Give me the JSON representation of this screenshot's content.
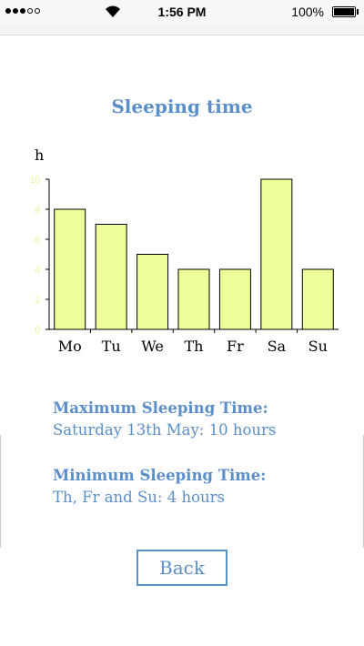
{
  "status_bar": {
    "time": "1:56 PM",
    "battery": "100%",
    "signal_bars_filled": 3,
    "signal_bars_total": 5
  },
  "page": {
    "title": "Sleeping time"
  },
  "chart_data": {
    "type": "bar",
    "ylabel": "h",
    "categories": [
      "Mo",
      "Tu",
      "We",
      "Th",
      "Fr",
      "Sa",
      "Su"
    ],
    "values": [
      8,
      7,
      5,
      4,
      4,
      10,
      4
    ],
    "yticks": [
      "0",
      "2",
      "4",
      "6",
      "8",
      "10"
    ],
    "ylim": [
      0,
      10
    ],
    "bar_color": "#eeff99",
    "grid": false
  },
  "info": {
    "max_heading": "Maximum Sleeping Time:",
    "max_value": "Saturday 13th May: 10 hours",
    "min_heading": "Minimum Sleeping Time:",
    "min_value": "Th, Fr and Su: 4 hours"
  },
  "actions": {
    "back_label": "Back"
  },
  "colors": {
    "accent": "#5b8fc9",
    "bar_fill": "#eeff99",
    "tick_label": "#e6f59a"
  }
}
